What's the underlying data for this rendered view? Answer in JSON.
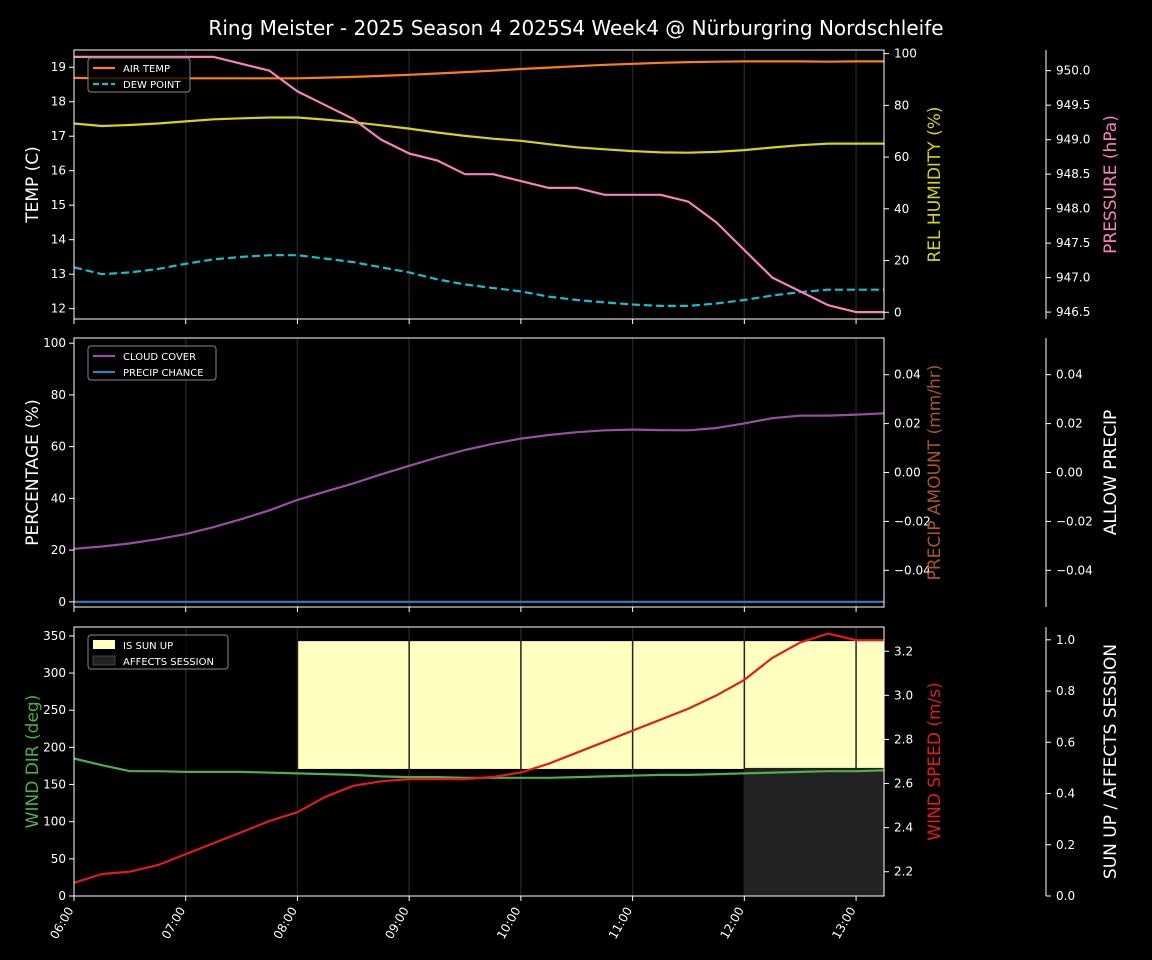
{
  "title": "Ring Meister - 2025 Season 4 2025S4 Week4 @ Nürburgring Nordschleife",
  "colors": {
    "background": "#000000",
    "axis": "#ffffff",
    "air_temp": "#ff7f0e",
    "dew_point": "#17becf",
    "rel_humidity": "#d4d41a",
    "pressure": "#f781bf",
    "cloud_cover": "#984ea3",
    "precip_chance": "#377eb8",
    "precip_amount": "#a65628",
    "wind_dir": "#4daf4a",
    "wind_speed": "#e41a1c",
    "sun_up": "#ffffbf",
    "affects_session": "#222222"
  },
  "chart_data": [
    {
      "type": "line",
      "panel": "weather",
      "x_ticks": [
        "06:00",
        "07:00",
        "08:00",
        "09:00",
        "10:00",
        "11:00",
        "12:00",
        "13:00"
      ],
      "ylabel": "TEMP (C)",
      "ylim": [
        11.7,
        19.5
      ],
      "yticks": [
        12,
        13,
        14,
        15,
        16,
        17,
        18,
        19
      ],
      "legend": [
        "AIR TEMP",
        "DEW POINT"
      ],
      "legend_position": "top-left",
      "x": [
        6.0,
        6.25,
        6.5,
        6.75,
        7.0,
        7.25,
        7.5,
        7.75,
        8.0,
        8.25,
        8.5,
        8.75,
        9.0,
        9.25,
        9.5,
        9.75,
        10.0,
        10.25,
        10.5,
        10.75,
        11.0,
        11.25,
        11.5,
        11.75,
        12.0,
        12.25,
        12.5,
        12.75,
        13.0,
        13.25
      ],
      "series": [
        {
          "name": "AIR TEMP",
          "axis": "temp",
          "color_key": "air_temp",
          "dashed": false,
          "values": [
            18.69,
            18.68,
            18.68,
            18.68,
            18.68,
            18.68,
            18.68,
            18.68,
            18.68,
            18.7,
            18.72,
            18.75,
            18.78,
            18.82,
            18.86,
            18.9,
            18.95,
            18.99,
            19.03,
            19.07,
            19.1,
            19.13,
            19.15,
            19.16,
            19.17,
            19.17,
            19.17,
            19.16,
            19.17,
            19.17
          ]
        },
        {
          "name": "DEW POINT",
          "axis": "temp",
          "color_key": "dew_point",
          "dashed": true,
          "values": [
            13.2,
            13.0,
            13.05,
            13.15,
            13.3,
            13.43,
            13.5,
            13.55,
            13.55,
            13.45,
            13.35,
            13.2,
            13.05,
            12.85,
            12.7,
            12.6,
            12.5,
            12.35,
            12.25,
            12.18,
            12.12,
            12.08,
            12.08,
            12.15,
            12.25,
            12.38,
            12.48,
            12.55,
            12.55,
            12.55
          ]
        },
        {
          "name": "",
          "axis": "humidity",
          "color_key": "rel_humidity",
          "dashed": false,
          "values": [
            73,
            72,
            72.4,
            73,
            73.8,
            74.6,
            75,
            75.3,
            75.3,
            74.5,
            73.5,
            72.3,
            71,
            69.5,
            68.2,
            67.1,
            66.3,
            65,
            63.8,
            63,
            62.3,
            61.8,
            61.7,
            62,
            62.7,
            63.7,
            64.6,
            65.2,
            65.2,
            65.2
          ]
        },
        {
          "name": "",
          "axis": "pressure",
          "color_key": "pressure",
          "dashed": false,
          "values": [
            950.2,
            950.2,
            950.2,
            950.2,
            950.2,
            950.2,
            950.1,
            950.0,
            949.7,
            949.5,
            949.3,
            949.0,
            948.8,
            948.7,
            948.5,
            948.5,
            948.4,
            948.3,
            948.3,
            948.2,
            948.2,
            948.2,
            948.1,
            947.8,
            947.4,
            947.0,
            946.8,
            946.6,
            946.5,
            946.5
          ]
        }
      ],
      "right_axes": [
        {
          "key": "humidity",
          "label": "REL HUMIDITY (%)",
          "color_key": "rel_humidity",
          "ylim": [
            -2.6,
            101.4
          ],
          "ticks": [
            0,
            20,
            40,
            60,
            80,
            100
          ]
        },
        {
          "key": "pressure",
          "label": "PRESSURE (hPa)",
          "color_key": "pressure",
          "ylim": [
            946.4,
            950.3
          ],
          "ticks": [
            946.5,
            947.0,
            947.5,
            948.0,
            948.5,
            949.0,
            949.5,
            950.0
          ],
          "tick_format": 1
        }
      ]
    },
    {
      "type": "line",
      "panel": "precip",
      "ylabel": "PERCENTAGE (%)",
      "ylim": [
        -2,
        102
      ],
      "yticks": [
        0,
        20,
        40,
        60,
        80,
        100
      ],
      "legend": [
        "CLOUD COVER",
        "PRECIP CHANCE"
      ],
      "legend_position": "top-left",
      "series": [
        {
          "name": "CLOUD COVER",
          "axis": "pct",
          "color_key": "cloud_cover",
          "dashed": false,
          "values": [
            20.5,
            21.4,
            22.6,
            24.2,
            26.2,
            28.9,
            32.0,
            35.4,
            39.4,
            42.6,
            45.8,
            49.3,
            52.6,
            55.8,
            58.7,
            61.1,
            63.1,
            64.5,
            65.6,
            66.3,
            66.6,
            66.4,
            66.3,
            67.2,
            69.0,
            71.0,
            72.0,
            72.0,
            72.4,
            72.9
          ]
        },
        {
          "name": "PRECIP CHANCE",
          "axis": "pct",
          "color_key": "precip_chance",
          "dashed": false,
          "values": [
            0,
            0,
            0,
            0,
            0,
            0,
            0,
            0,
            0,
            0,
            0,
            0,
            0,
            0,
            0,
            0,
            0,
            0,
            0,
            0,
            0,
            0,
            0,
            0,
            0,
            0,
            0,
            0,
            0,
            0
          ]
        }
      ],
      "right_axes": [
        {
          "key": "precip_amount",
          "label": "PRECIP AMOUNT (mm/hr)",
          "color_key": "precip_amount",
          "ylim": [
            -0.055,
            0.055
          ],
          "ticks": [
            -0.04,
            -0.02,
            0.0,
            0.02,
            0.04
          ],
          "tick_format": 2
        },
        {
          "key": "allow_precip",
          "label": "ALLOW PRECIP",
          "color_key": "axis",
          "ylim": [
            -0.055,
            0.055
          ],
          "ticks": [
            -0.04,
            -0.02,
            0.0,
            0.02,
            0.04
          ],
          "tick_format": 2
        }
      ]
    },
    {
      "type": "line",
      "panel": "wind",
      "ylabel": "WIND DIR (deg)",
      "ylabel_color_key": "wind_dir",
      "ylim": [
        0,
        362
      ],
      "yticks": [
        0,
        50,
        100,
        150,
        200,
        250,
        300,
        350
      ],
      "legend": [
        "IS SUN UP",
        "AFFECTS SESSION"
      ],
      "legend_position": "top-left",
      "bands": [
        {
          "name": "IS SUN UP",
          "color_key": "sun_up",
          "x_start": 8.0,
          "x_end": 13.25,
          "frac_low": 0.0,
          "frac_high": 1.0
        },
        {
          "name": "AFFECTS SESSION",
          "color_key": "affects_session",
          "x_start": 12.0,
          "x_end": 13.25,
          "frac_low": 0.0,
          "frac_high": 0.5
        }
      ],
      "series": [
        {
          "name": "",
          "axis": "wind_dir",
          "color_key": "wind_dir",
          "dashed": false,
          "values": [
            185,
            176,
            168,
            168,
            167,
            167,
            167,
            166,
            165,
            164,
            163,
            161,
            160,
            160,
            159,
            159,
            159,
            159,
            160,
            161,
            162,
            163,
            163,
            164,
            165,
            166,
            167,
            168,
            168,
            169
          ]
        },
        {
          "name": "",
          "axis": "wind_speed",
          "color_key": "wind_speed",
          "dashed": false,
          "values": [
            2.15,
            2.19,
            2.2,
            2.23,
            2.28,
            2.33,
            2.38,
            2.43,
            2.47,
            2.54,
            2.59,
            2.61,
            2.62,
            2.62,
            2.62,
            2.63,
            2.65,
            2.69,
            2.74,
            2.79,
            2.84,
            2.89,
            2.94,
            3.0,
            3.07,
            3.17,
            3.24,
            3.28,
            3.25,
            3.25
          ]
        }
      ],
      "right_axes": [
        {
          "key": "wind_speed",
          "label": "WIND SPEED (m/s)",
          "color_key": "wind_speed",
          "ylim": [
            2.09,
            3.31
          ],
          "ticks": [
            2.2,
            2.4,
            2.6,
            2.8,
            3.0,
            3.2
          ],
          "tick_format": 1
        },
        {
          "key": "sun",
          "label": "SUN UP / AFFECTS SESSION",
          "color_key": "axis",
          "ylim": [
            0,
            1.05
          ],
          "ticks": [
            0.0,
            0.2,
            0.4,
            0.6,
            0.8,
            1.0
          ],
          "tick_format": 1
        }
      ]
    }
  ]
}
